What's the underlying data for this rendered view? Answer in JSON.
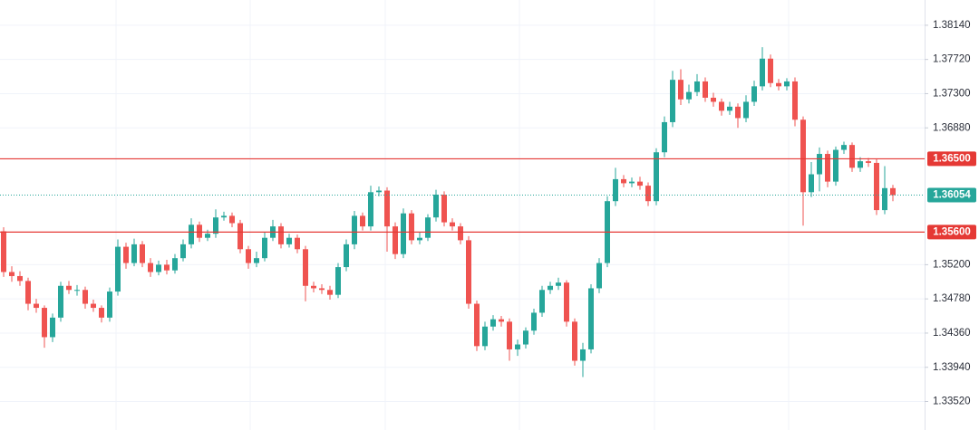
{
  "chart_data": {
    "type": "candlestick",
    "ylim": [
      1.3317,
      1.3845
    ],
    "yticks": [
      {
        "value": 1.3814,
        "label": "1.38140"
      },
      {
        "value": 1.3772,
        "label": "1.37720"
      },
      {
        "value": 1.373,
        "label": "1.37300"
      },
      {
        "value": 1.3688,
        "label": "1.36880"
      },
      {
        "value": 1.352,
        "label": "1.35200"
      },
      {
        "value": 1.3478,
        "label": "1.34780"
      },
      {
        "value": 1.3436,
        "label": "1.34360"
      },
      {
        "value": 1.3394,
        "label": "1.33940"
      },
      {
        "value": 1.3352,
        "label": "1.33520"
      }
    ],
    "grid": true,
    "up_color": "#26a69a",
    "down_color": "#ef5350",
    "last_price_color": "#26a69a",
    "hlines": [
      {
        "value": 1.365,
        "label": "1.36500",
        "color": "#e53935"
      },
      {
        "value": 1.356,
        "label": "1.35600",
        "color": "#e53935"
      }
    ],
    "candles": {
      "open": [
        1.3561,
        1.3511,
        1.3506,
        1.35,
        1.3472,
        1.3467,
        1.3431,
        1.3455,
        1.3494,
        1.3489,
        1.3489,
        1.3472,
        1.3467,
        1.3455,
        1.3487,
        1.3542,
        1.3522,
        1.3545,
        1.3522,
        1.3511,
        1.352,
        1.3513,
        1.3528,
        1.3545,
        1.3569,
        1.3553,
        1.3558,
        1.3578,
        1.358,
        1.3571,
        1.3539,
        1.3522,
        1.3528,
        1.3553,
        1.3567,
        1.3545,
        1.3553,
        1.3539,
        1.3494,
        1.3491,
        1.3489,
        1.3483,
        1.3517,
        1.3545,
        1.358,
        1.3567,
        1.3609,
        1.3611,
        1.3567,
        1.3533,
        1.3583,
        1.355,
        1.3553,
        1.3578,
        1.3606,
        1.3572,
        1.3567,
        1.355,
        1.3472,
        1.342,
        1.3444,
        1.3453,
        1.345,
        1.3416,
        1.3422,
        1.3439,
        1.3461,
        1.3489,
        1.3494,
        1.3498,
        1.345,
        1.3402,
        1.3416,
        1.3491,
        1.3522,
        1.3598,
        1.3625,
        1.362,
        1.3622,
        1.3617,
        1.3598,
        1.3658,
        1.3695,
        1.3747,
        1.3723,
        1.3732,
        1.3745,
        1.3725,
        1.372,
        1.3709,
        1.3714,
        1.37,
        1.372,
        1.3739,
        1.3773,
        1.3743,
        1.3739,
        1.3745,
        1.3698,
        1.3609,
        1.3631,
        1.3656,
        1.3622,
        1.3661,
        1.3667,
        1.3639,
        1.3647,
        1.3645,
        1.3587,
        1.3614
      ],
      "high": [
        1.3566,
        1.3518,
        1.3512,
        1.3504,
        1.3478,
        1.347,
        1.346,
        1.3499,
        1.35,
        1.3495,
        1.3493,
        1.3477,
        1.347,
        1.3492,
        1.3551,
        1.3547,
        1.3552,
        1.3549,
        1.3528,
        1.3525,
        1.3526,
        1.3533,
        1.3551,
        1.3577,
        1.3573,
        1.3563,
        1.3588,
        1.3585,
        1.3584,
        1.3575,
        1.3543,
        1.3536,
        1.356,
        1.3575,
        1.3571,
        1.3558,
        1.3557,
        1.3543,
        1.3499,
        1.3496,
        1.3494,
        1.3522,
        1.3551,
        1.3586,
        1.3584,
        1.3617,
        1.3616,
        1.3615,
        1.3572,
        1.3589,
        1.3587,
        1.356,
        1.3582,
        1.3612,
        1.361,
        1.3577,
        1.3571,
        1.3555,
        1.3476,
        1.345,
        1.3458,
        1.3457,
        1.3454,
        1.3428,
        1.3443,
        1.3466,
        1.3494,
        1.3499,
        1.3504,
        1.3501,
        1.3454,
        1.3424,
        1.3496,
        1.3528,
        1.3604,
        1.3639,
        1.363,
        1.3627,
        1.3628,
        1.3621,
        1.3663,
        1.3702,
        1.3758,
        1.376,
        1.3741,
        1.3754,
        1.375,
        1.3731,
        1.3724,
        1.372,
        1.3718,
        1.3728,
        1.3746,
        1.3787,
        1.3778,
        1.3748,
        1.3749,
        1.375,
        1.3702,
        1.3646,
        1.3664,
        1.366,
        1.3665,
        1.3671,
        1.367,
        1.3652,
        1.3651,
        1.365,
        1.3641,
        1.3618
      ],
      "low": [
        1.3505,
        1.3499,
        1.3494,
        1.3464,
        1.3461,
        1.3418,
        1.3425,
        1.345,
        1.3484,
        1.3482,
        1.3466,
        1.3462,
        1.3449,
        1.345,
        1.3482,
        1.3515,
        1.3518,
        1.3517,
        1.3505,
        1.3507,
        1.3508,
        1.3509,
        1.3524,
        1.354,
        1.3548,
        1.3549,
        1.3553,
        1.3574,
        1.3566,
        1.3534,
        1.3515,
        1.3517,
        1.3524,
        1.3549,
        1.354,
        1.3541,
        1.3534,
        1.3475,
        1.3486,
        1.3484,
        1.3477,
        1.3479,
        1.3512,
        1.3539,
        1.3562,
        1.3562,
        1.3604,
        1.3536,
        1.3527,
        1.3528,
        1.3545,
        1.3545,
        1.3549,
        1.3573,
        1.3567,
        1.3562,
        1.3545,
        1.3466,
        1.3414,
        1.3415,
        1.3439,
        1.3444,
        1.3402,
        1.3408,
        1.3417,
        1.3434,
        1.3456,
        1.3484,
        1.3489,
        1.3444,
        1.3396,
        1.3382,
        1.3411,
        1.3485,
        1.3517,
        1.3592,
        1.3615,
        1.3615,
        1.3612,
        1.3592,
        1.3593,
        1.3652,
        1.3689,
        1.3716,
        1.3718,
        1.3727,
        1.372,
        1.3714,
        1.3703,
        1.3704,
        1.3688,
        1.3695,
        1.3715,
        1.3734,
        1.3738,
        1.3734,
        1.3734,
        1.369,
        1.3568,
        1.3603,
        1.361,
        1.3615,
        1.3617,
        1.3656,
        1.3634,
        1.3634,
        1.364,
        1.3581,
        1.3582,
        1.3598
      ],
      "close": [
        1.3511,
        1.3506,
        1.35,
        1.3472,
        1.3467,
        1.3431,
        1.3455,
        1.3494,
        1.3489,
        1.3489,
        1.3472,
        1.3467,
        1.3455,
        1.3487,
        1.3542,
        1.3522,
        1.3545,
        1.3522,
        1.3511,
        1.352,
        1.3513,
        1.3528,
        1.3545,
        1.3569,
        1.3553,
        1.3558,
        1.3578,
        1.358,
        1.3571,
        1.3539,
        1.3522,
        1.3528,
        1.3553,
        1.3567,
        1.3545,
        1.3553,
        1.3539,
        1.3494,
        1.3491,
        1.3489,
        1.3483,
        1.3517,
        1.3545,
        1.358,
        1.3567,
        1.3609,
        1.3611,
        1.3567,
        1.3533,
        1.3583,
        1.355,
        1.3553,
        1.3578,
        1.3606,
        1.3572,
        1.3567,
        1.355,
        1.3472,
        1.342,
        1.3444,
        1.3453,
        1.345,
        1.3416,
        1.3422,
        1.3439,
        1.3461,
        1.3489,
        1.3494,
        1.3498,
        1.345,
        1.3402,
        1.3416,
        1.3491,
        1.3522,
        1.3598,
        1.3625,
        1.362,
        1.3622,
        1.3617,
        1.3598,
        1.3658,
        1.3695,
        1.3747,
        1.3723,
        1.3732,
        1.3745,
        1.3725,
        1.372,
        1.3709,
        1.3714,
        1.37,
        1.372,
        1.3739,
        1.3773,
        1.3743,
        1.3739,
        1.3745,
        1.3698,
        1.3609,
        1.3631,
        1.3656,
        1.3622,
        1.3661,
        1.3667,
        1.3639,
        1.3647,
        1.3645,
        1.3587,
        1.3614,
        1.36054
      ]
    }
  }
}
